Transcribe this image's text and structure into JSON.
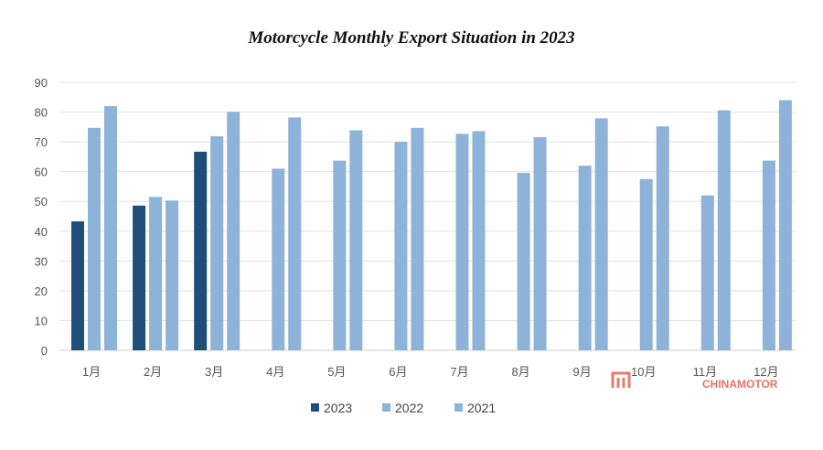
{
  "chart_data": {
    "type": "bar",
    "title": "Motorcycle Monthly Export Situation in 2023",
    "xlabel": "",
    "ylabel": "",
    "ylim": [
      0,
      90
    ],
    "yticks": [
      0,
      10,
      20,
      30,
      40,
      50,
      60,
      70,
      80,
      90
    ],
    "grid": true,
    "legend_position": "bottom",
    "categories": [
      "1月",
      "2月",
      "3月",
      "4月",
      "5月",
      "6月",
      "7月",
      "8月",
      "9月",
      "10月",
      "11月",
      "12月"
    ],
    "series": [
      {
        "name": "2023",
        "color": "#1f4e79",
        "values": [
          43.3,
          48.6,
          66.7,
          null,
          null,
          null,
          null,
          null,
          null,
          null,
          null,
          null
        ]
      },
      {
        "name": "2022",
        "color": "#8db3d9",
        "values": [
          74.7,
          51.5,
          71.9,
          61.0,
          63.7,
          70.0,
          72.7,
          59.6,
          62.0,
          57.5,
          52.0,
          63.7
        ]
      },
      {
        "name": "2021",
        "color": "#8db3d9",
        "values": [
          82.0,
          50.3,
          80.1,
          78.2,
          73.9,
          74.7,
          73.6,
          71.6,
          77.9,
          75.2,
          80.6,
          84.0
        ]
      }
    ]
  },
  "watermark": {
    "text": "CHINAMOTOR",
    "color": "#e05a4a"
  }
}
